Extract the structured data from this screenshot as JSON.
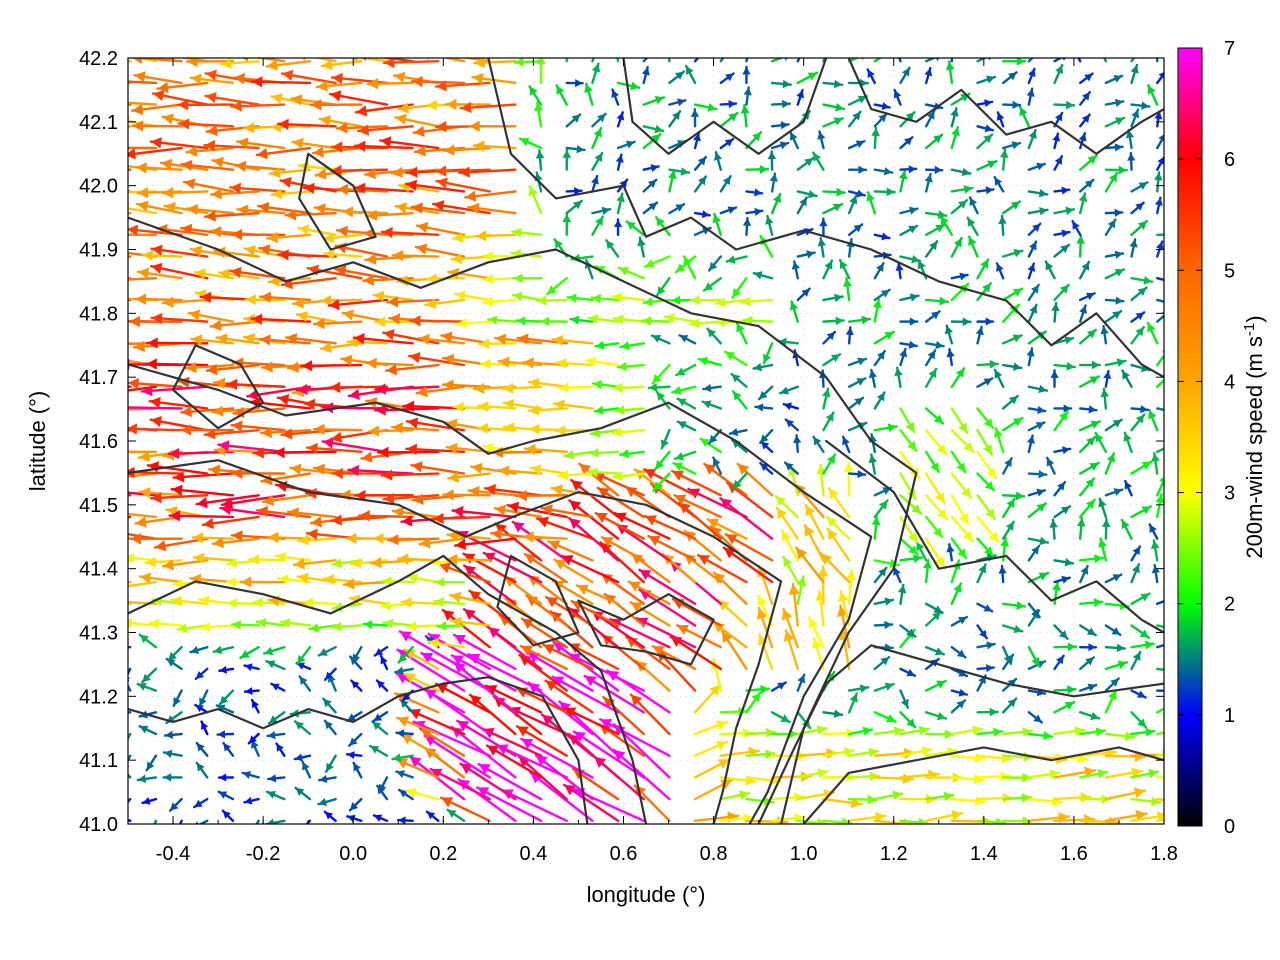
{
  "chart_data": {
    "type": "vector-field",
    "xlabel": "longitude (°)",
    "ylabel": "latitude (°)",
    "xlim": [
      -0.5,
      1.8
    ],
    "ylim": [
      41.0,
      42.2
    ],
    "xticks": [
      -0.4,
      -0.2,
      0.0,
      0.2,
      0.4,
      0.6,
      0.8,
      1.0,
      1.2,
      1.4,
      1.6,
      1.8
    ],
    "xtick_labels": [
      "-0.4",
      "-0.2",
      "0.0",
      "0.2",
      "0.4",
      "0.6",
      "0.8",
      "1.0",
      "1.2",
      "1.4",
      "1.6",
      "1.8"
    ],
    "yticks": [
      41.0,
      41.1,
      41.2,
      41.3,
      41.4,
      41.5,
      41.6,
      41.7,
      41.8,
      41.9,
      42.0,
      42.1,
      42.2
    ],
    "ytick_labels": [
      "41.0",
      "41.1",
      "41.2",
      "41.3",
      "41.4",
      "41.5",
      "41.6",
      "41.7",
      "41.8",
      "41.9",
      "42.0",
      "42.1",
      "42.2"
    ],
    "grid": true,
    "colorbar": {
      "label_main": "200m-wind speed (m s",
      "label_sup": "-1",
      "label_close": ")",
      "range": [
        0,
        7
      ],
      "ticks": [
        0,
        1,
        2,
        3,
        4,
        5,
        6,
        7
      ],
      "tick_labels": [
        "0",
        "1",
        "2",
        "3",
        "4",
        "5",
        "6",
        "7"
      ],
      "stops": [
        {
          "v": 0.0,
          "color": "#000000"
        },
        {
          "v": 1.0,
          "color": "#0000ff"
        },
        {
          "v": 2.0,
          "color": "#00ff00"
        },
        {
          "v": 3.0,
          "color": "#ffff00"
        },
        {
          "v": 4.0,
          "color": "#ffa500"
        },
        {
          "v": 5.0,
          "color": "#ff6600"
        },
        {
          "v": 6.0,
          "color": "#ff0000"
        },
        {
          "v": 7.0,
          "color": "#ff00ff"
        }
      ]
    },
    "vector_regions": [
      {
        "lon": [
          -0.5,
          0.3
        ],
        "lat": [
          41.75,
          42.2
        ],
        "u": -3.8,
        "v": 0.15,
        "speed": 4.6
      },
      {
        "lon": [
          -0.5,
          0.5
        ],
        "lat": [
          41.45,
          41.75
        ],
        "u": -4.4,
        "v": 0.05,
        "speed": 5.3
      },
      {
        "lon": [
          -0.5,
          0.2
        ],
        "lat": [
          41.3,
          41.45
        ],
        "u": -3.0,
        "v": 0.0,
        "speed": 3.4
      },
      {
        "lon": [
          0.3,
          0.9
        ],
        "lat": [
          41.55,
          41.9
        ],
        "u": -2.0,
        "v": 0.0,
        "speed": 2.4
      },
      {
        "lon": [
          0.7,
          1.0
        ],
        "lat": [
          41.55,
          41.75
        ],
        "u": -1.0,
        "v": 0.0,
        "speed": 1.2
      },
      {
        "lon": [
          0.2,
          0.6
        ],
        "lat": [
          41.05,
          41.25
        ],
        "u": -1.4,
        "v": 0.9,
        "speed": 6.8
      },
      {
        "lon": [
          0.4,
          1.1
        ],
        "lat": [
          41.25,
          41.5
        ],
        "u": -1.5,
        "v": 1.0,
        "speed": 5.3
      },
      {
        "lon": [
          1.2,
          1.4
        ],
        "lat": [
          41.45,
          41.65
        ],
        "u": 0.0,
        "v": -1.0,
        "speed": 3.6
      },
      {
        "lon": [
          0.9,
          1.8
        ],
        "lat": [
          41.0,
          41.15
        ],
        "u": 2.4,
        "v": 0.1,
        "speed": 3.2
      },
      {
        "lon": [
          0.9,
          1.8
        ],
        "lat": [
          41.15,
          41.35
        ],
        "u": 1.2,
        "v": 0.0,
        "speed": 1.6
      },
      {
        "lon": [
          0.5,
          1.8
        ],
        "lat": [
          41.85,
          42.2
        ],
        "u": 0.3,
        "v": 0.4,
        "speed": 1.5
      },
      {
        "lon": [
          1.0,
          1.8
        ],
        "lat": [
          41.35,
          41.85
        ],
        "u": 0.4,
        "v": 0.5,
        "speed": 1.6
      },
      {
        "lon": [
          -0.5,
          0.2
        ],
        "lat": [
          41.0,
          41.3
        ],
        "u": -0.6,
        "v": 0.0,
        "speed": 1.3
      }
    ],
    "contours": [
      [
        [
          -0.5,
          41.18
        ],
        [
          -0.4,
          41.16
        ],
        [
          -0.3,
          41.18
        ],
        [
          -0.2,
          41.15
        ],
        [
          -0.1,
          41.18
        ],
        [
          0.0,
          41.16
        ],
        [
          0.1,
          41.2
        ],
        [
          0.2,
          41.22
        ],
        [
          0.3,
          41.23
        ],
        [
          0.42,
          41.2
        ],
        [
          0.5,
          41.1
        ],
        [
          0.52,
          41.0
        ]
      ],
      [
        [
          -0.5,
          41.33
        ],
        [
          -0.35,
          41.38
        ],
        [
          -0.2,
          41.36
        ],
        [
          -0.05,
          41.33
        ],
        [
          0.1,
          41.38
        ],
        [
          0.2,
          41.42
        ],
        [
          0.3,
          41.36
        ],
        [
          0.45,
          41.3
        ],
        [
          0.55,
          41.24
        ],
        [
          0.62,
          41.1
        ],
        [
          0.65,
          41.0
        ]
      ],
      [
        [
          -0.5,
          41.55
        ],
        [
          -0.3,
          41.57
        ],
        [
          -0.1,
          41.52
        ],
        [
          0.1,
          41.5
        ],
        [
          0.25,
          41.45
        ],
        [
          0.35,
          41.48
        ],
        [
          0.5,
          41.52
        ],
        [
          0.65,
          41.5
        ],
        [
          0.8,
          41.45
        ],
        [
          0.95,
          41.38
        ],
        [
          0.9,
          41.25
        ],
        [
          0.85,
          41.15
        ],
        [
          0.82,
          41.05
        ],
        [
          0.8,
          41.0
        ]
      ],
      [
        [
          -0.5,
          41.72
        ],
        [
          -0.3,
          41.68
        ],
        [
          -0.15,
          41.64
        ],
        [
          0.05,
          41.66
        ],
        [
          0.2,
          41.63
        ],
        [
          0.3,
          41.58
        ],
        [
          0.4,
          41.6
        ],
        [
          0.55,
          41.62
        ],
        [
          0.7,
          41.66
        ],
        [
          0.85,
          41.6
        ],
        [
          1.0,
          41.52
        ],
        [
          1.15,
          41.45
        ],
        [
          1.1,
          41.32
        ],
        [
          1.0,
          41.2
        ],
        [
          0.92,
          41.05
        ],
        [
          0.88,
          41.0
        ]
      ],
      [
        [
          -0.5,
          41.95
        ],
        [
          -0.3,
          41.9
        ],
        [
          -0.15,
          41.85
        ],
        [
          0.0,
          41.88
        ],
        [
          0.15,
          41.84
        ],
        [
          0.3,
          41.88
        ],
        [
          0.45,
          41.9
        ],
        [
          0.6,
          41.85
        ],
        [
          0.75,
          41.8
        ],
        [
          0.9,
          41.78
        ],
        [
          1.05,
          41.7
        ],
        [
          1.15,
          41.6
        ],
        [
          1.25,
          41.55
        ],
        [
          1.2,
          41.4
        ],
        [
          1.1,
          41.3
        ],
        [
          1.0,
          41.15
        ],
        [
          0.95,
          41.0
        ]
      ],
      [
        [
          0.3,
          42.2
        ],
        [
          0.35,
          42.05
        ],
        [
          0.45,
          41.98
        ],
        [
          0.6,
          42.0
        ],
        [
          0.65,
          41.92
        ],
        [
          0.75,
          41.95
        ],
        [
          0.85,
          41.9
        ],
        [
          1.0,
          41.93
        ],
        [
          1.15,
          41.9
        ],
        [
          1.3,
          41.85
        ],
        [
          1.45,
          41.82
        ],
        [
          1.55,
          41.75
        ],
        [
          1.65,
          41.8
        ],
        [
          1.75,
          41.72
        ],
        [
          1.8,
          41.7
        ]
      ],
      [
        [
          0.6,
          42.2
        ],
        [
          0.62,
          42.1
        ],
        [
          0.7,
          42.05
        ],
        [
          0.8,
          42.1
        ],
        [
          0.9,
          42.05
        ],
        [
          1.0,
          42.1
        ],
        [
          1.05,
          42.2
        ]
      ],
      [
        [
          1.1,
          42.2
        ],
        [
          1.15,
          42.12
        ],
        [
          1.25,
          42.1
        ],
        [
          1.35,
          42.15
        ],
        [
          1.45,
          42.08
        ],
        [
          1.55,
          42.1
        ],
        [
          1.65,
          42.05
        ],
        [
          1.75,
          42.1
        ],
        [
          1.8,
          42.12
        ]
      ],
      [
        [
          1.05,
          41.6
        ],
        [
          1.2,
          41.52
        ],
        [
          1.3,
          41.4
        ],
        [
          1.45,
          41.42
        ],
        [
          1.55,
          41.35
        ],
        [
          1.65,
          41.38
        ],
        [
          1.75,
          41.32
        ],
        [
          1.8,
          41.3
        ]
      ],
      [
        [
          0.9,
          41.0
        ],
        [
          0.98,
          41.12
        ],
        [
          1.05,
          41.22
        ],
        [
          1.15,
          41.28
        ],
        [
          1.3,
          41.25
        ],
        [
          1.45,
          41.22
        ],
        [
          1.6,
          41.2
        ],
        [
          1.8,
          41.22
        ]
      ],
      [
        [
          1.0,
          41.0
        ],
        [
          1.1,
          41.08
        ],
        [
          1.25,
          41.1
        ],
        [
          1.4,
          41.12
        ],
        [
          1.55,
          41.1
        ],
        [
          1.7,
          41.12
        ],
        [
          1.8,
          41.1
        ]
      ],
      [
        [
          0.5,
          41.35
        ],
        [
          0.6,
          41.32
        ],
        [
          0.7,
          41.36
        ],
        [
          0.8,
          41.32
        ],
        [
          0.75,
          41.25
        ],
        [
          0.65,
          41.27
        ],
        [
          0.55,
          41.28
        ],
        [
          0.5,
          41.35
        ]
      ],
      [
        [
          -0.35,
          41.75
        ],
        [
          -0.25,
          41.72
        ],
        [
          -0.2,
          41.66
        ],
        [
          -0.3,
          41.62
        ],
        [
          -0.4,
          41.68
        ],
        [
          -0.35,
          41.75
        ]
      ],
      [
        [
          0.35,
          41.42
        ],
        [
          0.45,
          41.38
        ],
        [
          0.5,
          41.3
        ],
        [
          0.4,
          41.28
        ],
        [
          0.32,
          41.34
        ],
        [
          0.35,
          41.42
        ]
      ],
      [
        [
          -0.1,
          42.05
        ],
        [
          0.0,
          42.0
        ],
        [
          0.05,
          41.92
        ],
        [
          -0.05,
          41.9
        ],
        [
          -0.12,
          41.98
        ],
        [
          -0.1,
          42.05
        ]
      ]
    ]
  }
}
